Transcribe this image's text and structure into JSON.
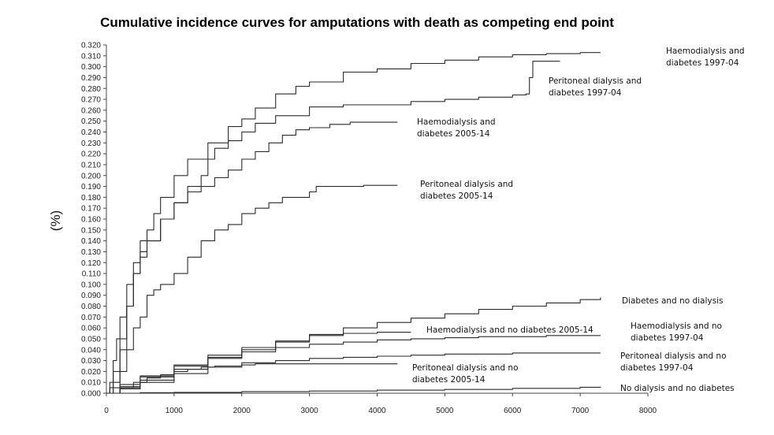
{
  "chart_data": {
    "type": "line",
    "title": "Cumulative incidence curves for amputations with death as competing end point",
    "ylabel": "(%)",
    "xlabel": "",
    "xlim": [
      0,
      8000
    ],
    "ylim": [
      0,
      0.32
    ],
    "grid": false,
    "x_ticks": [
      "0",
      "1000",
      "2000",
      "3000",
      "4000",
      "5000",
      "6000",
      "7000",
      "8000"
    ],
    "y_ticks": [
      "0.000",
      "0.010",
      "0.020",
      "0.030",
      "0.040",
      "0.050",
      "0.060",
      "0.070",
      "0.080",
      "0.090",
      "0.100",
      "0.110",
      "0.120",
      "0.130",
      "0.140",
      "0.150",
      "0.160",
      "0.170",
      "0.180",
      "0.190",
      "0.200",
      "0.210",
      "0.220",
      "0.230",
      "0.240",
      "0.250",
      "0.260",
      "0.270",
      "0.280",
      "0.290",
      "0.300",
      "0.310",
      "0.320"
    ],
    "series": [
      {
        "name": "Haemodialysis and diabetes 1997-04",
        "label_lines": [
          "Haemodialysis and",
          "diabetes 1997-04"
        ],
        "x": [
          0,
          50,
          100,
          150,
          200,
          300,
          400,
          500,
          600,
          700,
          800,
          1000,
          1200,
          1500,
          1800,
          2000,
          2200,
          2500,
          2800,
          3000,
          3500,
          4000,
          4500,
          5000,
          5500,
          6000,
          6500,
          7000,
          7300
        ],
        "y": [
          0,
          0.01,
          0.03,
          0.05,
          0.07,
          0.1,
          0.12,
          0.14,
          0.15,
          0.165,
          0.18,
          0.2,
          0.215,
          0.23,
          0.245,
          0.252,
          0.262,
          0.275,
          0.282,
          0.286,
          0.295,
          0.298,
          0.303,
          0.306,
          0.309,
          0.311,
          0.312,
          0.313,
          0.313
        ]
      },
      {
        "name": "Peritoneal dialysis and diabetes 1997-04",
        "label_lines": [
          "Peritoneal dialysis and",
          "diabetes 1997-04"
        ],
        "x": [
          0,
          100,
          200,
          300,
          400,
          500,
          600,
          800,
          1000,
          1200,
          1400,
          1500,
          1600,
          1800,
          2000,
          2200,
          2500,
          3000,
          3500,
          4000,
          4500,
          5000,
          5500,
          6000,
          6200,
          6250,
          6300,
          6700
        ],
        "y": [
          0,
          0.01,
          0.04,
          0.08,
          0.11,
          0.13,
          0.14,
          0.16,
          0.175,
          0.19,
          0.2,
          0.215,
          0.225,
          0.232,
          0.24,
          0.248,
          0.255,
          0.263,
          0.265,
          0.265,
          0.268,
          0.27,
          0.272,
          0.274,
          0.275,
          0.29,
          0.305,
          0.305
        ]
      },
      {
        "name": "Haemodialysis and diabetes 2005-14",
        "label_lines": [
          "Haemodialysis and",
          "diabetes 2005-14"
        ],
        "x": [
          0,
          50,
          100,
          200,
          300,
          400,
          500,
          600,
          800,
          1000,
          1200,
          1400,
          1600,
          1800,
          2000,
          2200,
          2400,
          2600,
          2800,
          3000,
          3300,
          3600,
          4000,
          4300
        ],
        "y": [
          0,
          0.005,
          0.02,
          0.05,
          0.08,
          0.11,
          0.125,
          0.14,
          0.16,
          0.175,
          0.185,
          0.19,
          0.198,
          0.205,
          0.215,
          0.222,
          0.23,
          0.237,
          0.242,
          0.244,
          0.247,
          0.249,
          0.249,
          0.249
        ]
      },
      {
        "name": "Peritoneal dialysis and diabetes 2005-14",
        "label_lines": [
          "Peritoneal dialysis and",
          "diabetes 2005-14"
        ],
        "x": [
          0,
          100,
          200,
          300,
          400,
          500,
          600,
          700,
          800,
          900,
          1000,
          1200,
          1400,
          1600,
          1800,
          2000,
          2200,
          2400,
          2600,
          2800,
          3000,
          3100,
          3300,
          3500,
          3800,
          4100,
          4300
        ],
        "y": [
          0,
          0.005,
          0.02,
          0.04,
          0.06,
          0.07,
          0.09,
          0.095,
          0.1,
          0.1,
          0.11,
          0.125,
          0.14,
          0.15,
          0.155,
          0.165,
          0.17,
          0.175,
          0.18,
          0.18,
          0.185,
          0.19,
          0.19,
          0.19,
          0.191,
          0.191,
          0.191
        ]
      },
      {
        "name": "Diabetes and no dialysis",
        "label_lines": [
          "Diabetes and no dialysis"
        ],
        "x": [
          0,
          200,
          500,
          1000,
          1500,
          2000,
          2500,
          3000,
          3500,
          4000,
          4500,
          5000,
          5500,
          6000,
          6500,
          7000,
          7300
        ],
        "y": [
          0,
          0.005,
          0.012,
          0.022,
          0.032,
          0.04,
          0.047,
          0.054,
          0.06,
          0.065,
          0.069,
          0.073,
          0.077,
          0.08,
          0.083,
          0.086,
          0.088
        ]
      },
      {
        "name": "Haemodialysis and no diabetes 2005-14",
        "label_lines": [
          "Haemodialysis and no diabetes 2005-14"
        ],
        "x": [
          0,
          200,
          500,
          1000,
          1500,
          2000,
          2500,
          3000,
          3500,
          4000,
          4500
        ],
        "y": [
          0,
          0.008,
          0.016,
          0.026,
          0.035,
          0.042,
          0.048,
          0.053,
          0.055,
          0.056,
          0.056
        ]
      },
      {
        "name": "Haemodialysis and no diabetes 1997-04",
        "label_lines": [
          "Haemodialysis and no",
          "diabetes 1997-04"
        ],
        "x": [
          0,
          200,
          500,
          1000,
          1500,
          2000,
          2500,
          3000,
          3500,
          4000,
          4500,
          5000,
          5500,
          6000,
          6500,
          7000,
          7300
        ],
        "y": [
          0,
          0.006,
          0.015,
          0.025,
          0.033,
          0.038,
          0.042,
          0.045,
          0.047,
          0.049,
          0.05,
          0.051,
          0.052,
          0.052,
          0.053,
          0.053,
          0.053
        ]
      },
      {
        "name": "Peritoneal dialysis and no diabetes 1997-04",
        "label_lines": [
          "Peritoneal dialysis and no",
          "diabetes 1997-04"
        ],
        "x": [
          0,
          200,
          500,
          1000,
          1500,
          2000,
          2500,
          3000,
          3500,
          4000,
          4500,
          5000,
          5500,
          6000,
          6500,
          7000,
          7300
        ],
        "y": [
          0,
          0.004,
          0.01,
          0.018,
          0.024,
          0.028,
          0.03,
          0.032,
          0.033,
          0.034,
          0.035,
          0.036,
          0.036,
          0.037,
          0.037,
          0.037,
          0.037
        ]
      },
      {
        "name": "Peritoneal dialysis and no diabetes 2005-14",
        "label_lines": [
          "Peritoneal dialysis and no",
          "diabetes 2005-14"
        ],
        "x": [
          0,
          200,
          400,
          600,
          800,
          1000,
          1200,
          1400,
          1600,
          1800,
          2000,
          2200,
          2400,
          2600,
          2800,
          3000,
          3500,
          4000,
          4300
        ],
        "y": [
          0,
          0.005,
          0.01,
          0.014,
          0.017,
          0.02,
          0.022,
          0.024,
          0.025,
          0.025,
          0.026,
          0.027,
          0.027,
          0.027,
          0.027,
          0.027,
          0.027,
          0.027,
          0.027
        ]
      },
      {
        "name": "No dialysis and no diabetes",
        "label_lines": [
          "No dialysis and no diabetes"
        ],
        "x": [
          0,
          500,
          1000,
          2000,
          3000,
          4000,
          5000,
          6000,
          7000,
          7300
        ],
        "y": [
          0,
          0.0005,
          0.0008,
          0.0015,
          0.002,
          0.0028,
          0.0035,
          0.0045,
          0.0055,
          0.006
        ]
      }
    ]
  }
}
